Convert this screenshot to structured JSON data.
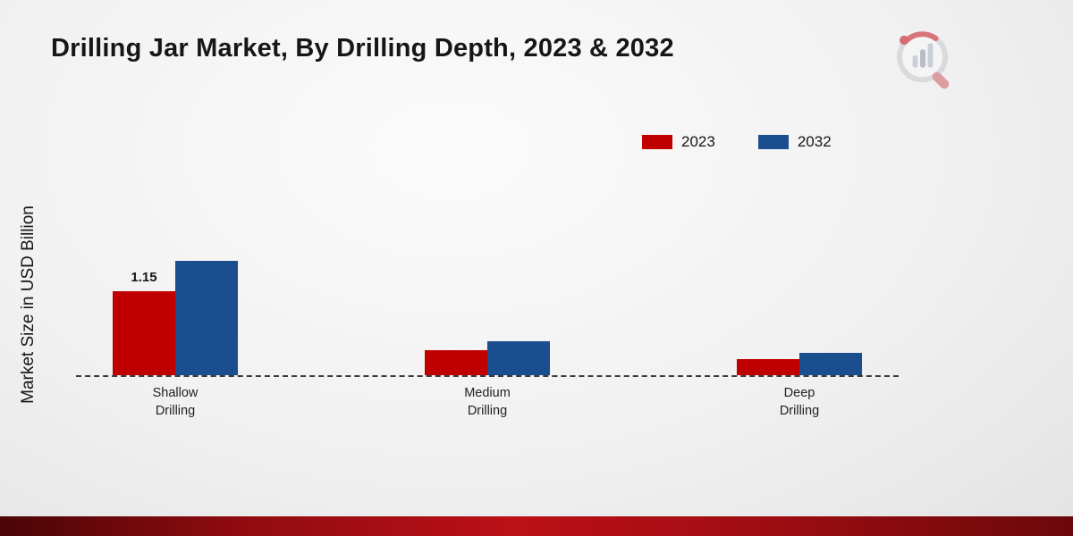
{
  "title": "Drilling Jar Market, By Drilling Depth, 2023 & 2032",
  "chart_data": {
    "type": "bar",
    "title": "Drilling Jar Market, By Drilling Depth, 2023 & 2032",
    "categories": [
      "Shallow\nDrilling",
      "Medium\nDrilling",
      "Deep\nDrilling"
    ],
    "series": [
      {
        "name": "2023",
        "color": "#c00000",
        "values": [
          1.15,
          0.34,
          0.22
        ]
      },
      {
        "name": "2032",
        "color": "#1b4e8e",
        "values": [
          1.56,
          0.46,
          0.31
        ]
      }
    ],
    "xlabel": "",
    "ylabel": "Market Size in USD Billion",
    "ylim": [
      0,
      1.95
    ],
    "grid": false,
    "axis_line_style": "dashed",
    "legend_position": "top-center-right",
    "data_labels": [
      {
        "series": "2023",
        "category_index": 0,
        "text": "1.15"
      }
    ]
  }
}
